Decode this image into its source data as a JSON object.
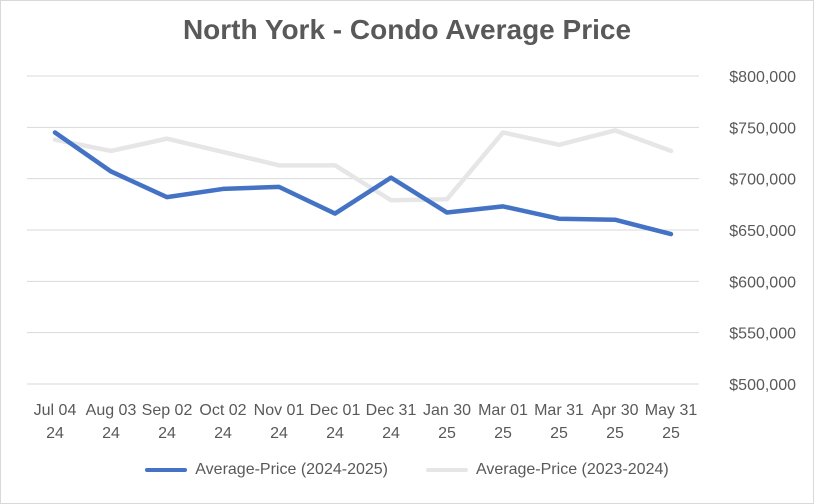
{
  "chart_data": {
    "type": "line",
    "title": "North York - Condo Average Price",
    "categories": [
      [
        "Jul 04",
        "24"
      ],
      [
        "Aug 03",
        "24"
      ],
      [
        "Sep 02",
        "24"
      ],
      [
        "Oct 02",
        "24"
      ],
      [
        "Nov 01",
        "24"
      ],
      [
        "Dec 01",
        "24"
      ],
      [
        "Dec 31",
        "24"
      ],
      [
        "Jan 30",
        "25"
      ],
      [
        "Mar 01",
        "25"
      ],
      [
        "Mar 31",
        "25"
      ],
      [
        "Apr 30",
        "25"
      ],
      [
        "May 31",
        "25"
      ]
    ],
    "series": [
      {
        "name": "Average-Price (2024-2025)",
        "color": "#4472c4",
        "values": [
          745000,
          707000,
          682000,
          690000,
          692000,
          666000,
          701000,
          667000,
          673000,
          661000,
          660000,
          646000
        ]
      },
      {
        "name": "Average-Price (2023-2024)",
        "color": "#e7e6e6",
        "values": [
          738000,
          727000,
          739000,
          726000,
          713000,
          713000,
          679000,
          680000,
          745000,
          733000,
          747000,
          727000
        ]
      }
    ],
    "yaxis": {
      "position": "right",
      "min": 500000,
      "max": 800000,
      "step": 50000,
      "tick_labels": [
        "$500,000",
        "$550,000",
        "$600,000",
        "$650,000",
        "$700,000",
        "$750,000",
        "$800,000"
      ]
    },
    "grid": "horizontal",
    "gridline_color": "#d9d9d9",
    "legend_position": "bottom"
  }
}
